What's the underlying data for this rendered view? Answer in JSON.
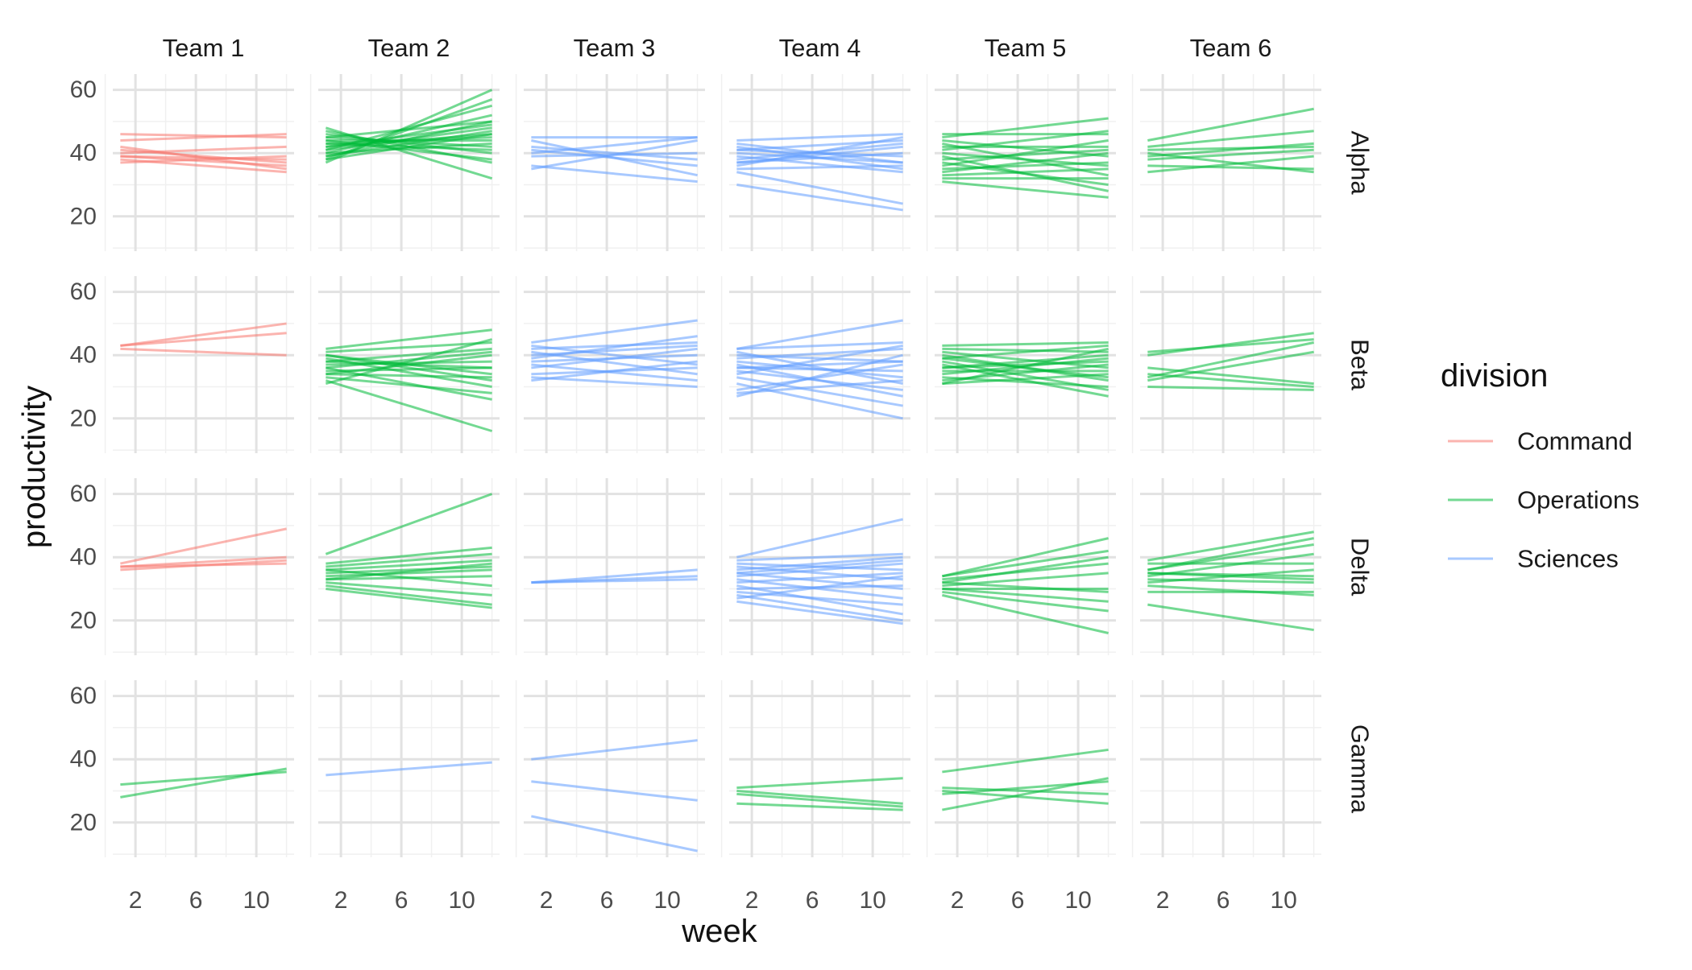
{
  "chart_data": {
    "type": "line",
    "xlabel": "week",
    "ylabel": "productivity",
    "xticks": [
      2,
      6,
      10
    ],
    "yticks": [
      20,
      40,
      60
    ],
    "xlim": [
      0.5,
      12.5
    ],
    "ylim": [
      9,
      65
    ],
    "grid": true,
    "legend": {
      "title": "division",
      "placement": "right",
      "entries": [
        {
          "label": "Command",
          "color": "#F8766D"
        },
        {
          "label": "Operations",
          "color": "#00BA38"
        },
        {
          "label": "Sciences",
          "color": "#619CFF"
        }
      ]
    },
    "columns": [
      "Team 1",
      "Team 2",
      "Team 3",
      "Team 4",
      "Team 5",
      "Team 6"
    ],
    "rows": [
      "Alpha",
      "Beta",
      "Delta",
      "Gamma"
    ],
    "line_x": [
      1,
      12
    ],
    "panels": [
      {
        "row": "Alpha",
        "col": "Team 1",
        "division": "Command",
        "lines": [
          [
            46,
            45
          ],
          [
            44,
            46
          ],
          [
            42,
            35
          ],
          [
            41,
            37
          ],
          [
            40,
            42
          ],
          [
            39,
            36
          ],
          [
            38,
            34
          ],
          [
            39,
            38
          ],
          [
            37,
            39
          ]
        ]
      },
      {
        "row": "Alpha",
        "col": "Team 2",
        "division": "Operations",
        "lines": [
          [
            37,
            60
          ],
          [
            38,
            57
          ],
          [
            39,
            50
          ],
          [
            40,
            52
          ],
          [
            41,
            48
          ],
          [
            42,
            46
          ],
          [
            43,
            45
          ],
          [
            44,
            44
          ],
          [
            45,
            42
          ],
          [
            46,
            40
          ],
          [
            47,
            37
          ],
          [
            48,
            32
          ],
          [
            41,
            55
          ],
          [
            40,
            43
          ],
          [
            39,
            47
          ],
          [
            42,
            49
          ],
          [
            43,
            41
          ],
          [
            44,
            38
          ],
          [
            38,
            46
          ],
          [
            45,
            50
          ]
        ]
      },
      {
        "row": "Alpha",
        "col": "Team 3",
        "division": "Sciences",
        "lines": [
          [
            45,
            45
          ],
          [
            44,
            33
          ],
          [
            42,
            38
          ],
          [
            41,
            36
          ],
          [
            40,
            45
          ],
          [
            39,
            40
          ],
          [
            36,
            31
          ],
          [
            35,
            44
          ]
        ]
      },
      {
        "row": "Alpha",
        "col": "Team 4",
        "division": "Sciences",
        "lines": [
          [
            44,
            46
          ],
          [
            43,
            37
          ],
          [
            42,
            35
          ],
          [
            41,
            44
          ],
          [
            40,
            37
          ],
          [
            39,
            34
          ],
          [
            38,
            43
          ],
          [
            37,
            40
          ],
          [
            36,
            45
          ],
          [
            35,
            36
          ],
          [
            34,
            24
          ],
          [
            30,
            22
          ],
          [
            37,
            42
          ],
          [
            41,
            39
          ]
        ]
      },
      {
        "row": "Alpha",
        "col": "Team 5",
        "division": "Operations",
        "lines": [
          [
            46,
            46
          ],
          [
            45,
            51
          ],
          [
            44,
            39
          ],
          [
            43,
            33
          ],
          [
            42,
            42
          ],
          [
            41,
            47
          ],
          [
            40,
            36
          ],
          [
            39,
            28
          ],
          [
            38,
            41
          ],
          [
            37,
            30
          ],
          [
            36,
            44
          ],
          [
            35,
            37
          ],
          [
            34,
            40
          ],
          [
            33,
            35
          ],
          [
            31,
            26
          ],
          [
            32,
            32
          ]
        ]
      },
      {
        "row": "Alpha",
        "col": "Team 6",
        "division": "Operations",
        "lines": [
          [
            44,
            54
          ],
          [
            42,
            47
          ],
          [
            41,
            42
          ],
          [
            40,
            34
          ],
          [
            39,
            43
          ],
          [
            38,
            41
          ],
          [
            36,
            35
          ],
          [
            34,
            39
          ]
        ]
      },
      {
        "row": "Beta",
        "col": "Team 1",
        "division": "Command",
        "lines": [
          [
            43,
            50
          ],
          [
            43,
            47
          ],
          [
            42,
            40
          ]
        ]
      },
      {
        "row": "Beta",
        "col": "Team 2",
        "division": "Operations",
        "lines": [
          [
            42,
            48
          ],
          [
            41,
            44
          ],
          [
            40,
            34
          ],
          [
            39,
            30
          ],
          [
            38,
            42
          ],
          [
            37,
            38
          ],
          [
            36,
            26
          ],
          [
            35,
            36
          ],
          [
            34,
            40
          ],
          [
            33,
            28
          ],
          [
            32,
            16
          ],
          [
            31,
            45
          ],
          [
            40,
            32
          ],
          [
            38,
            36
          ],
          [
            36,
            41
          ],
          [
            34,
            33
          ]
        ]
      },
      {
        "row": "Beta",
        "col": "Team 3",
        "division": "Sciences",
        "lines": [
          [
            44,
            51
          ],
          [
            43,
            37
          ],
          [
            42,
            44
          ],
          [
            41,
            34
          ],
          [
            39,
            46
          ],
          [
            38,
            40
          ],
          [
            37,
            32
          ],
          [
            36,
            42
          ],
          [
            34,
            36
          ],
          [
            33,
            30
          ],
          [
            32,
            38
          ],
          [
            40,
            43
          ]
        ]
      },
      {
        "row": "Beta",
        "col": "Team 4",
        "division": "Sciences",
        "lines": [
          [
            42,
            51
          ],
          [
            42,
            44
          ],
          [
            41,
            31
          ],
          [
            40,
            38
          ],
          [
            39,
            42
          ],
          [
            38,
            33
          ],
          [
            37,
            27
          ],
          [
            36,
            35
          ],
          [
            35,
            29
          ],
          [
            33,
            24
          ],
          [
            31,
            20
          ],
          [
            29,
            37
          ],
          [
            28,
            32
          ],
          [
            27,
            40
          ],
          [
            34,
            43
          ],
          [
            36,
            38
          ]
        ]
      },
      {
        "row": "Beta",
        "col": "Team 5",
        "division": "Operations",
        "lines": [
          [
            43,
            44
          ],
          [
            42,
            41
          ],
          [
            41,
            36
          ],
          [
            40,
            32
          ],
          [
            39,
            43
          ],
          [
            38,
            29
          ],
          [
            37,
            27
          ],
          [
            36,
            40
          ],
          [
            35,
            35
          ],
          [
            34,
            39
          ],
          [
            33,
            30
          ],
          [
            32,
            37
          ],
          [
            31,
            42
          ],
          [
            31,
            34
          ],
          [
            36,
            38
          ],
          [
            39,
            33
          ]
        ]
      },
      {
        "row": "Beta",
        "col": "Team 6",
        "division": "Operations",
        "lines": [
          [
            41,
            45
          ],
          [
            40,
            47
          ],
          [
            36,
            31
          ],
          [
            34,
            30
          ],
          [
            33,
            44
          ],
          [
            30,
            29
          ],
          [
            32,
            41
          ]
        ]
      },
      {
        "row": "Delta",
        "col": "Team 1",
        "division": "Command",
        "lines": [
          [
            38,
            49
          ],
          [
            37,
            40
          ],
          [
            37,
            38
          ],
          [
            36,
            39
          ]
        ]
      },
      {
        "row": "Delta",
        "col": "Team 2",
        "division": "Operations",
        "lines": [
          [
            41,
            60
          ],
          [
            38,
            43
          ],
          [
            37,
            41
          ],
          [
            36,
            39
          ],
          [
            35,
            37
          ],
          [
            34,
            36
          ],
          [
            33,
            34
          ],
          [
            32,
            28
          ],
          [
            31,
            25
          ],
          [
            30,
            24
          ],
          [
            36,
            31
          ],
          [
            33,
            38
          ]
        ]
      },
      {
        "row": "Delta",
        "col": "Team 3",
        "division": "Sciences",
        "lines": [
          [
            32,
            36
          ],
          [
            32,
            33
          ],
          [
            32,
            34
          ]
        ]
      },
      {
        "row": "Delta",
        "col": "Team 4",
        "division": "Sciences",
        "lines": [
          [
            40,
            52
          ],
          [
            39,
            41
          ],
          [
            38,
            36
          ],
          [
            37,
            33
          ],
          [
            36,
            40
          ],
          [
            35,
            30
          ],
          [
            34,
            38
          ],
          [
            33,
            27
          ],
          [
            32,
            35
          ],
          [
            31,
            22
          ],
          [
            30,
            31
          ],
          [
            29,
            25
          ],
          [
            28,
            20
          ],
          [
            27,
            34
          ],
          [
            26,
            19
          ],
          [
            35,
            39
          ]
        ]
      },
      {
        "row": "Delta",
        "col": "Team 5",
        "division": "Operations",
        "lines": [
          [
            34,
            46
          ],
          [
            34,
            42
          ],
          [
            33,
            38
          ],
          [
            32,
            29
          ],
          [
            31,
            35
          ],
          [
            30,
            30
          ],
          [
            29,
            23
          ],
          [
            28,
            16
          ],
          [
            30,
            26
          ],
          [
            32,
            40
          ]
        ]
      },
      {
        "row": "Delta",
        "col": "Team 6",
        "division": "Operations",
        "lines": [
          [
            39,
            48
          ],
          [
            38,
            38
          ],
          [
            36,
            46
          ],
          [
            35,
            34
          ],
          [
            34,
            41
          ],
          [
            33,
            32
          ],
          [
            32,
            36
          ],
          [
            31,
            28
          ],
          [
            29,
            29
          ],
          [
            25,
            17
          ],
          [
            35,
            33
          ],
          [
            36,
            44
          ]
        ]
      },
      {
        "row": "Gamma",
        "col": "Team 1",
        "division": "Operations",
        "lines": [
          [
            32,
            36
          ],
          [
            28,
            37
          ]
        ]
      },
      {
        "row": "Gamma",
        "col": "Team 2",
        "division": "Sciences",
        "lines": [
          [
            35,
            39
          ]
        ]
      },
      {
        "row": "Gamma",
        "col": "Team 3",
        "division": "Sciences",
        "lines": [
          [
            40,
            46
          ],
          [
            33,
            27
          ],
          [
            22,
            11
          ]
        ]
      },
      {
        "row": "Gamma",
        "col": "Team 4",
        "division": "Operations",
        "lines": [
          [
            31,
            34
          ],
          [
            30,
            26
          ],
          [
            29,
            25
          ],
          [
            26,
            24
          ]
        ]
      },
      {
        "row": "Gamma",
        "col": "Team 5",
        "division": "Operations",
        "lines": [
          [
            36,
            43
          ],
          [
            31,
            29
          ],
          [
            30,
            26
          ],
          [
            24,
            34
          ],
          [
            29,
            33
          ]
        ]
      },
      {
        "row": "Gamma",
        "col": "Team 6",
        "division": "Operations",
        "lines": []
      }
    ]
  }
}
